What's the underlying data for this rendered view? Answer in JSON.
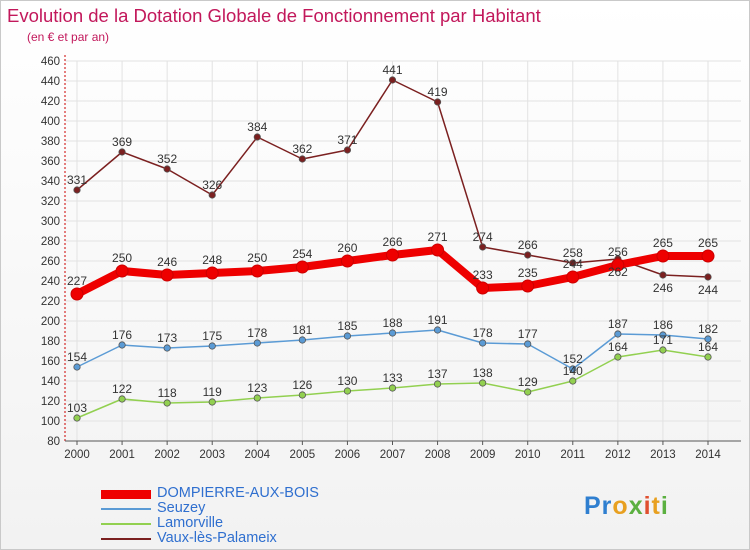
{
  "title": "Evolution de la Dotation Globale de Fonctionnement par Habitant",
  "subtitle": "(en € et par an)",
  "logo_text": "Proxiti",
  "colors": {
    "title": "#c2185b",
    "axis": "#cc0000",
    "grid": "#e2e2e2",
    "label": "#333333"
  },
  "chart_data": {
    "type": "line",
    "title": "Evolution de la Dotation Globale de Fonctionnement par Habitant",
    "subtitle": "(en € et par an)",
    "xlabel": "",
    "ylabel": "",
    "x": [
      "2000",
      "2001",
      "2002",
      "2003",
      "2004",
      "2005",
      "2006",
      "2007",
      "2008",
      "2009",
      "2010",
      "2011",
      "2012",
      "2013",
      "2014"
    ],
    "ylim": [
      80,
      460
    ],
    "ytick_step": 20,
    "grid": true,
    "legend_position": "bottom-left",
    "series": [
      {
        "name": "DOMPIERRE-AUX-BOIS",
        "color": "#ee0000",
        "values": [
          227,
          250,
          246,
          248,
          250,
          254,
          260,
          266,
          271,
          233,
          235,
          244,
          256,
          265,
          265
        ],
        "labels": [
          "227",
          "250",
          "246",
          "248",
          "250",
          "254",
          "260",
          "266",
          "271",
          "233",
          "235",
          "244",
          "256",
          "265",
          "265"
        ]
      },
      {
        "name": "Seuzey",
        "color": "#5b9bd5",
        "values": [
          154,
          176,
          173,
          175,
          178,
          181,
          185,
          188,
          191,
          178,
          177,
          152,
          187,
          186,
          182
        ],
        "labels": [
          "154",
          "176",
          "173",
          "175",
          "178",
          "181",
          "185",
          "188",
          "191",
          "178",
          "177",
          "152",
          "187",
          "186",
          "182"
        ]
      },
      {
        "name": "Lamorville",
        "color": "#92d050",
        "values": [
          103,
          122,
          118,
          119,
          123,
          126,
          130,
          133,
          137,
          138,
          129,
          140,
          164,
          171,
          164
        ],
        "labels": [
          "103",
          "122",
          "118",
          "119",
          "123",
          "126",
          "130",
          "133",
          "137",
          "138",
          "129",
          "140",
          "164",
          "171",
          "164"
        ]
      },
      {
        "name": "Vaux-lès-Palameix",
        "color": "#7b2020",
        "values": [
          331,
          369,
          352,
          326,
          384,
          362,
          371,
          441,
          419,
          274,
          266,
          258,
          262,
          246,
          244
        ],
        "labels": [
          "331",
          "369",
          "352",
          "326",
          "384",
          "362",
          "371",
          "441",
          "419",
          "274",
          "266",
          "258",
          "262",
          "246",
          "244"
        ]
      }
    ]
  }
}
